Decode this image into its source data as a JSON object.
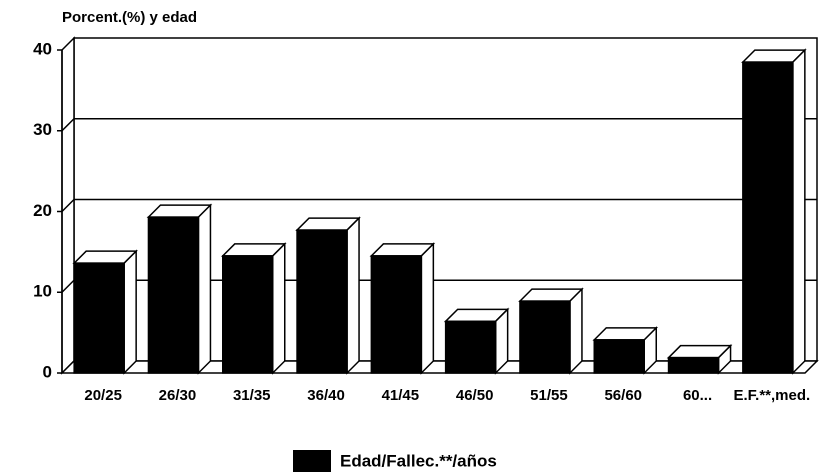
{
  "chart_data": {
    "type": "bar3d",
    "title": "Porcent.(%) y edad",
    "categories": [
      "20/25",
      "26/30",
      "31/35",
      "36/40",
      "41/45",
      "46/50",
      "51/55",
      "56/60",
      "60...",
      "E.F.**,med."
    ],
    "series": [
      {
        "name": "Edad/Fallec.**/años",
        "color": "#000000",
        "values": [
          13.6,
          19.3,
          14.5,
          17.7,
          14.5,
          6.4,
          8.9,
          4.1,
          1.9,
          38.5
        ]
      }
    ],
    "ylim": [
      0,
      40
    ],
    "yticks": [
      0,
      10,
      20,
      30,
      40
    ],
    "grid": true,
    "legend": "bottom"
  }
}
